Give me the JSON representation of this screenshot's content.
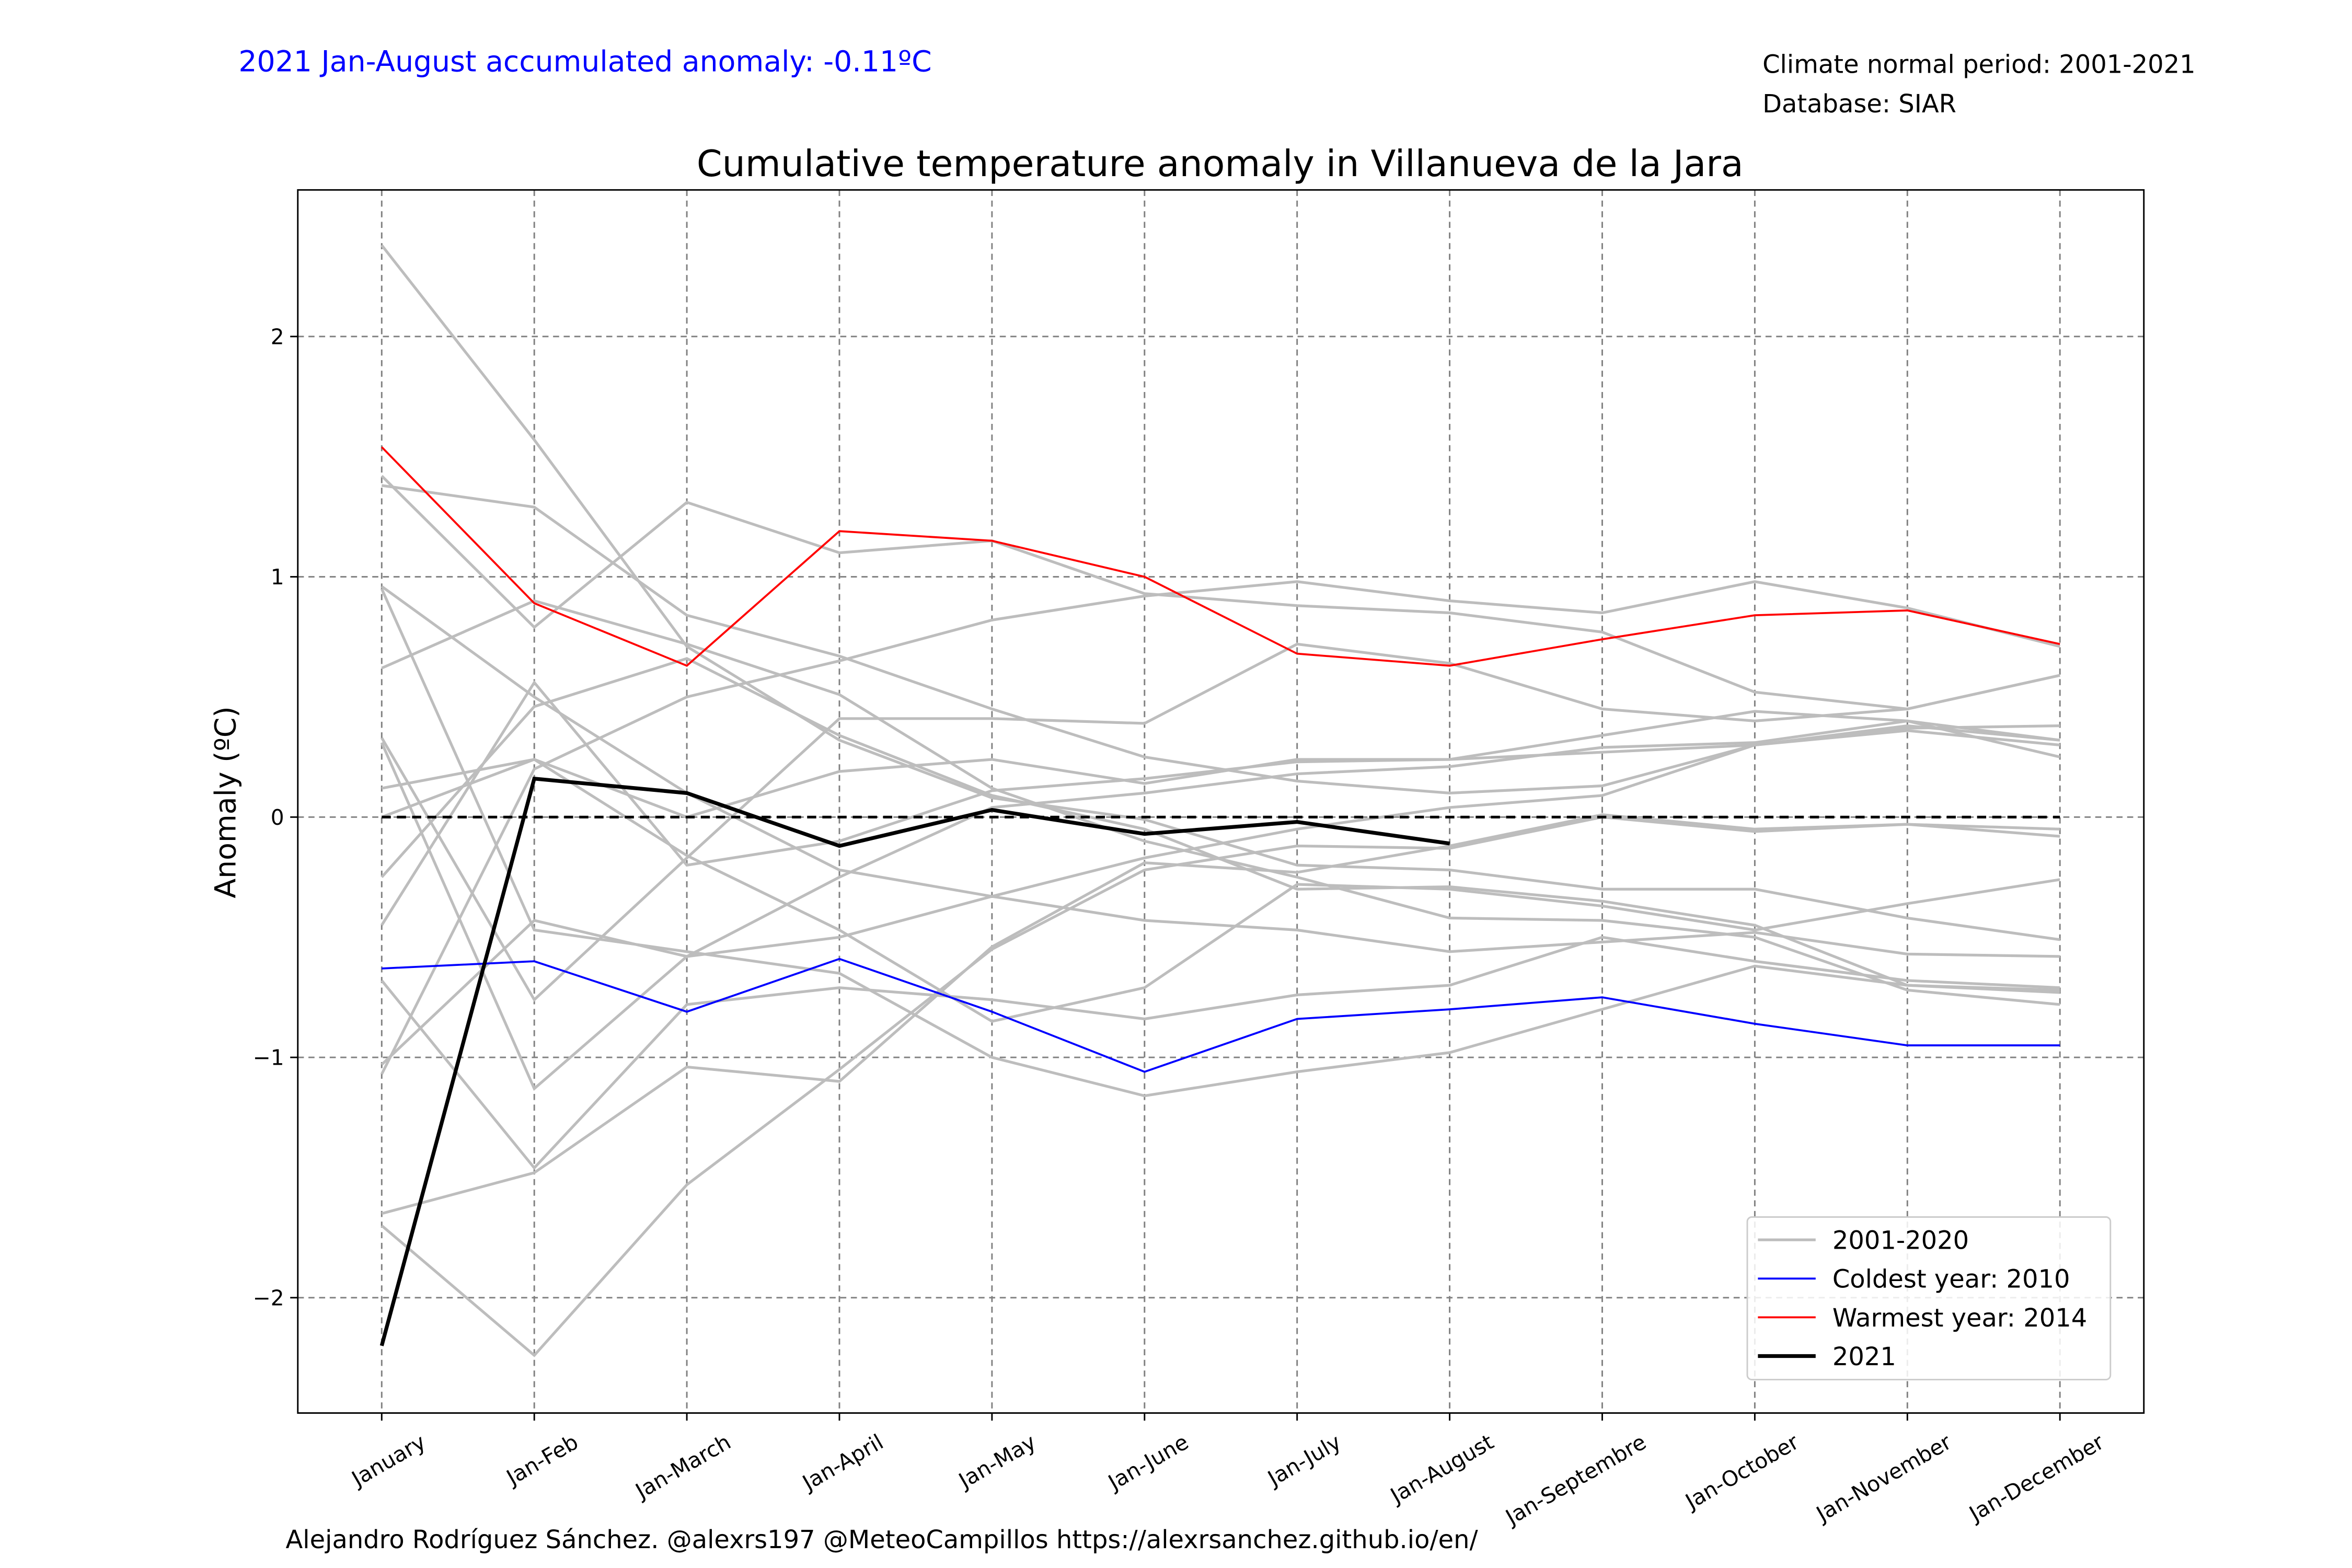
{
  "chart_data": {
    "type": "line",
    "title": "Cumulative temperature anomaly in Villanueva de la Jara",
    "annotation": "2021 Jan-August accumulated anomaly: -0.11ºC",
    "info_lines": [
      "Climate normal period: 2001-2021",
      "Database: SIAR"
    ],
    "credit": "Alejandro Rodríguez Sánchez. @alexrs197 @MeteoCampillos   https://alexrsanchez.github.io/en/",
    "ylabel": "Anomaly (ºC)",
    "categories": [
      "January",
      "Jan-Feb",
      "Jan-March",
      "Jan-April",
      "Jan-May",
      "Jan-June",
      "Jan-July",
      "Jan-August",
      "Jan-Septembre",
      "Jan-October",
      "Jan-November",
      "Jan-December"
    ],
    "ylim": [
      -2.48,
      2.61
    ],
    "yticks": [
      {
        "value": -2,
        "label": "−2"
      },
      {
        "value": -1,
        "label": "−1"
      },
      0,
      1,
      2
    ],
    "grid": true,
    "hline": 0,
    "legend": "lower right",
    "series": [
      {
        "name": "2001-2020",
        "color": "#bdbdbd",
        "lines": [
          [
            2.38,
            1.57,
            0.71,
            0.32,
            0.08,
            -0.01,
            -0.2,
            -0.22,
            -0.3,
            -0.3,
            -0.42,
            -0.51
          ],
          [
            1.42,
            0.79,
            1.31,
            1.1,
            1.15,
            0.93,
            0.88,
            0.85,
            0.77,
            0.52,
            0.45,
            0.59
          ],
          [
            1.38,
            1.29,
            0.84,
            0.67,
            0.45,
            0.25,
            0.15,
            0.1,
            0.13,
            0.3,
            0.38,
            0.32
          ],
          [
            0.96,
            0.5,
            0.1,
            -0.22,
            -0.33,
            -0.43,
            -0.47,
            -0.56,
            -0.52,
            -0.48,
            -0.57,
            -0.58
          ],
          [
            0.95,
            -0.47,
            -0.56,
            -0.65,
            -1.0,
            -1.16,
            -1.06,
            -0.98,
            -0.8,
            -0.62,
            -0.7,
            -0.73
          ],
          [
            0.62,
            0.9,
            0.72,
            0.51,
            0.12,
            -0.1,
            -0.25,
            -0.42,
            -0.43,
            -0.5,
            -0.72,
            -0.78
          ],
          [
            0.33,
            -0.76,
            -0.17,
            0.41,
            0.41,
            0.39,
            0.72,
            0.64,
            0.45,
            0.4,
            0.45,
            0.59
          ],
          [
            0.31,
            -1.13,
            -0.58,
            -0.5,
            -0.33,
            -0.17,
            -0.05,
            0.04,
            0.09,
            0.3,
            0.36,
            0.3
          ],
          [
            0.12,
            0.24,
            -0.16,
            -0.47,
            -0.85,
            -0.71,
            -0.28,
            -0.3,
            -0.37,
            -0.47,
            -0.36,
            -0.26
          ],
          [
            -0.25,
            0.46,
            0.66,
            0.34,
            0.09,
            -0.05,
            -0.3,
            -0.29,
            -0.35,
            -0.45,
            -0.7,
            -0.72
          ],
          [
            -0.45,
            0.56,
            -0.2,
            -0.1,
            0.11,
            0.16,
            0.23,
            0.24,
            0.27,
            0.3,
            0.37,
            0.38
          ],
          [
            -0.68,
            -1.46,
            -0.78,
            -0.71,
            -0.76,
            -0.84,
            -0.74,
            -0.7,
            -0.5,
            -0.6,
            -0.68,
            -0.71
          ],
          [
            -1.03,
            -0.43,
            -0.58,
            -0.25,
            0.04,
            0.1,
            0.18,
            0.21,
            0.29,
            0.31,
            0.4,
            0.25
          ],
          [
            -1.07,
            0.2,
            0.5,
            0.65,
            0.82,
            0.92,
            0.98,
            0.9,
            0.85,
            0.98,
            0.87,
            0.71
          ],
          [
            -1.65,
            -1.48,
            -1.04,
            -1.1,
            -0.54,
            -0.19,
            -0.23,
            -0.12,
            0.01,
            -0.05,
            -0.03,
            -0.05
          ],
          [
            -1.7,
            -2.24,
            -1.53,
            -1.05,
            -0.55,
            -0.22,
            -0.12,
            -0.13,
            0.0,
            -0.06,
            -0.03,
            -0.08
          ],
          [
            0.0,
            0.24,
            0.0,
            0.19,
            0.24,
            0.14,
            0.24,
            0.24,
            0.34,
            0.44,
            0.4,
            0.32
          ]
        ]
      },
      {
        "name": "Coldest year: 2010",
        "color": "#0000ff",
        "values": [
          -0.63,
          -0.6,
          -0.81,
          -0.59,
          -0.81,
          -1.06,
          -0.84,
          -0.8,
          -0.75,
          -0.86,
          -0.95,
          -0.95
        ]
      },
      {
        "name": "Warmest year: 2014",
        "color": "#ff0000",
        "values": [
          1.54,
          0.89,
          0.63,
          1.19,
          1.15,
          1.0,
          0.68,
          0.63,
          0.74,
          0.84,
          0.86,
          0.72
        ]
      },
      {
        "name": "2021",
        "color": "#000000",
        "width": 2.5,
        "values": [
          -2.2,
          0.16,
          0.1,
          -0.12,
          0.03,
          -0.07,
          -0.02,
          -0.11,
          null,
          null,
          null,
          null
        ]
      }
    ]
  }
}
